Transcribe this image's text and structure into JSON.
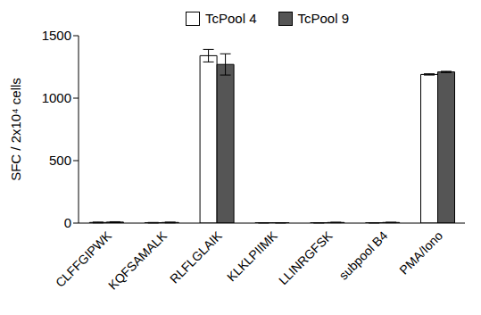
{
  "chart_data": {
    "type": "bar",
    "y_label": "SFC / 2x10⁴ cells",
    "categories": [
      "CLFFGIPWK",
      "KQFSAMALK",
      "RLFLGLAIK",
      "KLKLPIIMK",
      "LLINRGFSK",
      "subpool B4",
      "PMA/Iono"
    ],
    "series": [
      {
        "name": "TcPool 4",
        "color": "#ffffff",
        "values": [
          5,
          3,
          1340,
          2,
          2,
          2,
          1190
        ],
        "errors": [
          3,
          2,
          50,
          1,
          1,
          1,
          5
        ]
      },
      {
        "name": "TcPool 9",
        "color": "#555555",
        "values": [
          8,
          5,
          1270,
          2,
          5,
          5,
          1210
        ],
        "errors": [
          3,
          3,
          85,
          1,
          2,
          2,
          5
        ]
      }
    ],
    "ylim": [
      0,
      1500
    ],
    "yticks": [
      0,
      500,
      1000,
      1500
    ],
    "grid": false,
    "legend": "top"
  }
}
